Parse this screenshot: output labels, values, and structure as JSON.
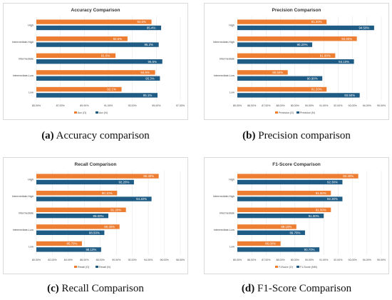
{
  "colors": {
    "orange": "#ED7D31",
    "blue": "#1F5C85",
    "pink_glow": "#F4A6D7",
    "grid": "#e6e6e6",
    "text": "#444444"
  },
  "captions": [
    {
      "letter": "(a)",
      "text": " Accuracy comparison"
    },
    {
      "letter": "(b)",
      "text": " Precision comparison"
    },
    {
      "letter": "(c)",
      "text": " Recall Comparison"
    },
    {
      "letter": "(d)",
      "text": " F1-Score Comparison"
    }
  ],
  "chart_data": [
    {
      "type": "bar",
      "orientation": "horizontal",
      "title": "Accuracy Comparison",
      "categories": [
        "High",
        "Intermediate-High",
        "Intermediate",
        "Intermediate-Low",
        "Low"
      ],
      "series": [
        {
          "name": "Acc (O)",
          "values": [
            94.6,
            92.6,
            91.6,
            94.9,
            92.1
          ]
        },
        {
          "name": "Acc (N)",
          "values": [
            95.4,
            95.2,
            95.5,
            95.3,
            95.1
          ]
        }
      ],
      "x_ticks": [
        "85.00%",
        "87.00%",
        "89.00%",
        "91.00%",
        "93.00%",
        "95.00%",
        "97.00%"
      ],
      "xlim": [
        85,
        97
      ],
      "legend": "bottom",
      "grid": true
    },
    {
      "type": "bar",
      "orientation": "horizontal",
      "title": "Precision Comparison",
      "categories": [
        "High",
        "Intermediate-High",
        "Intermediate",
        "Intermediate-Low",
        "Low"
      ],
      "series": [
        {
          "name": "Precision (O)",
          "values": [
            91.2,
            93.3,
            91.8,
            88.5,
            91.2
          ]
        },
        {
          "name": "Precision (N)",
          "values": [
            94.5,
            90.2,
            93.1,
            90.9,
            93.5
          ]
        }
      ],
      "x_ticks": [
        "85.00%",
        "86.00%",
        "87.00%",
        "88.00%",
        "89.00%",
        "90.00%",
        "91.00%",
        "92.00%",
        "93.00%",
        "94.00%",
        "95.00%"
      ],
      "xlim": [
        85,
        95
      ],
      "legend": "bottom",
      "grid": true
    },
    {
      "type": "bar",
      "orientation": "horizontal",
      "title": "Recall Comparison",
      "categories": [
        "High",
        "Intermediate-High",
        "Intermediate",
        "Intermediate-Low",
        "Low"
      ],
      "series": [
        {
          "name": "Recall (O)",
          "values": [
            95.3,
            90.1,
            91.2,
            90.4,
            85.7
          ]
        },
        {
          "name": "Recall (N)",
          "values": [
            92.2,
            94.4,
            89.0,
            88.5,
            88.1
          ]
        }
      ],
      "x_ticks": [
        "80.00%",
        "82.00%",
        "84.00%",
        "86.00%",
        "88.00%",
        "90.00%",
        "92.00%",
        "94.00%",
        "96.00%",
        "98.00%"
      ],
      "xlim": [
        80,
        98
      ],
      "legend": "bottom",
      "grid": true
    },
    {
      "type": "bar",
      "orientation": "horizontal",
      "title": "F1-Score Comparison",
      "categories": [
        "High",
        "Intermediate-High",
        "Intermediate",
        "Intermediate-Low",
        "Low"
      ],
      "series": [
        {
          "name": "F1Score (O)",
          "values": [
            93.4,
            91.5,
            91.5,
            89.1,
            88.0
          ]
        },
        {
          "name": "F1-Score (NM)",
          "values": [
            92.3,
            92.3,
            91.0,
            89.7,
            90.7
          ]
        }
      ],
      "x_ticks": [
        "85.00%",
        "86.00%",
        "87.00%",
        "88.00%",
        "89.00%",
        "90.00%",
        "91.00%",
        "92.00%",
        "93.00%",
        "94.00%",
        "95.00%"
      ],
      "xlim": [
        85,
        95
      ],
      "legend": "bottom",
      "grid": true
    }
  ]
}
